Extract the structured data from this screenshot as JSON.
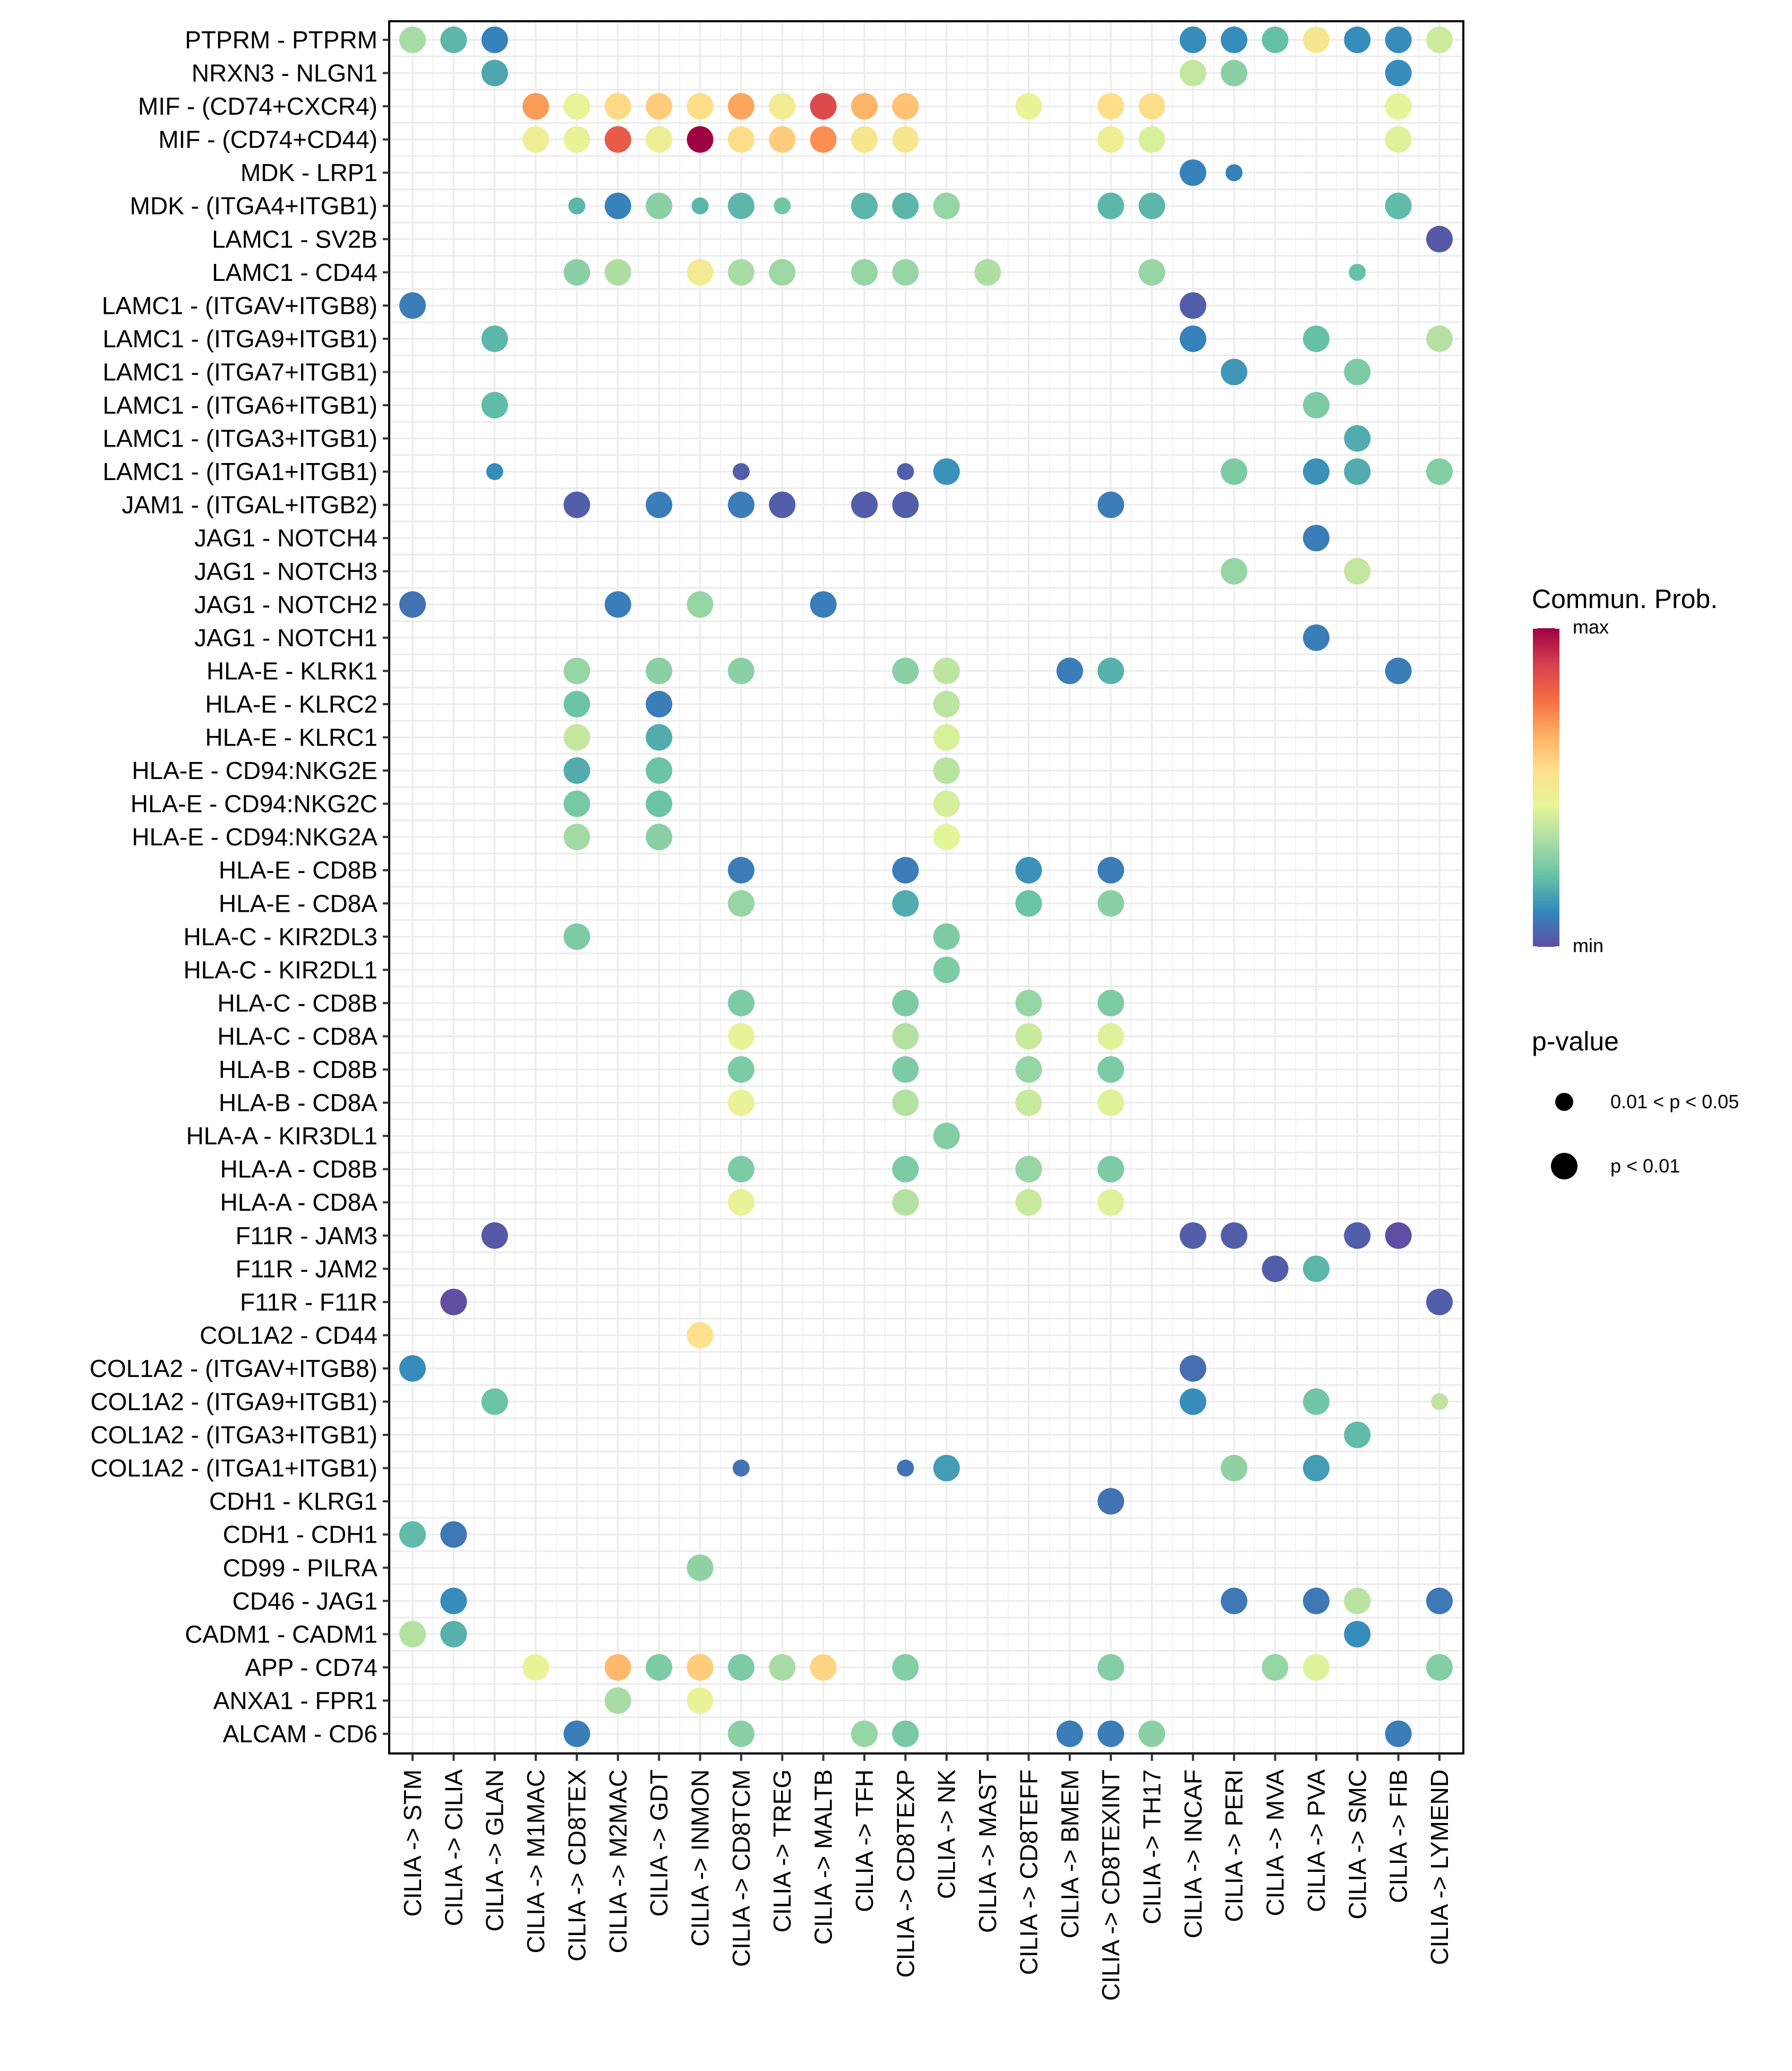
{
  "chart_data": {
    "type": "scatter",
    "subtype": "bubble-dotplot",
    "title": "",
    "xlabel": "",
    "ylabel": "",
    "grid": true,
    "x_categories": [
      "CILIA -> STM",
      "CILIA -> CILIA",
      "CILIA -> GLAN",
      "CILIA -> M1MAC",
      "CILIA -> CD8TEX",
      "CILIA -> M2MAC",
      "CILIA -> GDT",
      "CILIA -> INMON",
      "CILIA -> CD8TCM",
      "CILIA -> TREG",
      "CILIA -> MALTB",
      "CILIA -> TFH",
      "CILIA -> CD8TEXP",
      "CILIA -> NK",
      "CILIA -> MAST",
      "CILIA -> CD8TEFF",
      "CILIA -> BMEM",
      "CILIA -> CD8TEXINT",
      "CILIA -> TH17",
      "CILIA -> INCAF",
      "CILIA -> PERI",
      "CILIA -> MVA",
      "CILIA -> PVA",
      "CILIA -> SMC",
      "CILIA -> FIB",
      "CILIA -> LYMEND"
    ],
    "y_categories_top_to_bottom": [
      "PTPRM - PTPRM",
      "NRXN3 - NLGN1",
      "MIF - (CD74+CXCR4)",
      "MIF - (CD74+CD44)",
      "MDK - LRP1",
      "MDK - (ITGA4+ITGB1)",
      "LAMC1 - SV2B",
      "LAMC1 - CD44",
      "LAMC1 - (ITGAV+ITGB8)",
      "LAMC1 - (ITGA9+ITGB1)",
      "LAMC1 - (ITGA7+ITGB1)",
      "LAMC1 - (ITGA6+ITGB1)",
      "LAMC1 - (ITGA3+ITGB1)",
      "LAMC1 - (ITGA1+ITGB1)",
      "JAM1 - (ITGAL+ITGB2)",
      "JAG1 - NOTCH4",
      "JAG1 - NOTCH3",
      "JAG1 - NOTCH2",
      "JAG1 - NOTCH1",
      "HLA-E - KLRK1",
      "HLA-E - KLRC2",
      "HLA-E - KLRC1",
      "HLA-E - CD94:NKG2E",
      "HLA-E - CD94:NKG2C",
      "HLA-E - CD94:NKG2A",
      "HLA-E - CD8B",
      "HLA-E - CD8A",
      "HLA-C - KIR2DL3",
      "HLA-C - KIR2DL1",
      "HLA-C - CD8B",
      "HLA-C - CD8A",
      "HLA-B - CD8B",
      "HLA-B - CD8A",
      "HLA-A - KIR3DL1",
      "HLA-A - CD8B",
      "HLA-A - CD8A",
      "F11R - JAM3",
      "F11R - JAM2",
      "F11R - F11R",
      "COL1A2 - CD44",
      "COL1A2 - (ITGAV+ITGB8)",
      "COL1A2 - (ITGA9+ITGB1)",
      "COL1A2 - (ITGA3+ITGB1)",
      "COL1A2 - (ITGA1+ITGB1)",
      "CDH1 - KLRG1",
      "CDH1 - CDH1",
      "CD99 - PILRA",
      "CD46 - JAG1",
      "CADM1 - CADM1",
      "APP - CD74",
      "ANXA1 - FPR1",
      "ALCAM - CD6"
    ],
    "point_fields": [
      "row_index",
      "col_index",
      "commun_prob_scaled_0_to_1",
      "p_lt_0.01 (1) or 0.01<p<0.05 (0)"
    ],
    "points": [
      [
        0,
        0,
        0.33,
        1
      ],
      [
        0,
        1,
        0.2,
        1
      ],
      [
        0,
        2,
        0.1,
        1
      ],
      [
        0,
        19,
        0.12,
        1
      ],
      [
        0,
        20,
        0.12,
        1
      ],
      [
        0,
        21,
        0.22,
        1
      ],
      [
        0,
        22,
        0.52,
        1
      ],
      [
        0,
        23,
        0.12,
        1
      ],
      [
        0,
        24,
        0.12,
        1
      ],
      [
        0,
        25,
        0.4,
        1
      ],
      [
        1,
        2,
        0.17,
        1
      ],
      [
        1,
        19,
        0.38,
        1
      ],
      [
        1,
        20,
        0.28,
        1
      ],
      [
        1,
        24,
        0.12,
        1
      ],
      [
        2,
        3,
        0.7,
        1
      ],
      [
        2,
        4,
        0.45,
        1
      ],
      [
        2,
        5,
        0.57,
        1
      ],
      [
        2,
        6,
        0.6,
        1
      ],
      [
        2,
        7,
        0.56,
        1
      ],
      [
        2,
        8,
        0.68,
        1
      ],
      [
        2,
        9,
        0.5,
        1
      ],
      [
        2,
        10,
        0.86,
        1
      ],
      [
        2,
        11,
        0.65,
        1
      ],
      [
        2,
        12,
        0.62,
        1
      ],
      [
        2,
        15,
        0.46,
        1
      ],
      [
        2,
        17,
        0.56,
        1
      ],
      [
        2,
        18,
        0.56,
        1
      ],
      [
        2,
        24,
        0.44,
        1
      ],
      [
        3,
        3,
        0.48,
        1
      ],
      [
        3,
        4,
        0.46,
        1
      ],
      [
        3,
        5,
        0.82,
        1
      ],
      [
        3,
        6,
        0.48,
        1
      ],
      [
        3,
        7,
        1.0,
        1
      ],
      [
        3,
        8,
        0.56,
        1
      ],
      [
        3,
        9,
        0.6,
        1
      ],
      [
        3,
        10,
        0.72,
        1
      ],
      [
        3,
        11,
        0.52,
        1
      ],
      [
        3,
        12,
        0.52,
        1
      ],
      [
        3,
        17,
        0.48,
        1
      ],
      [
        3,
        18,
        0.42,
        1
      ],
      [
        3,
        24,
        0.43,
        1
      ],
      [
        4,
        19,
        0.1,
        1
      ],
      [
        4,
        20,
        0.1,
        0
      ],
      [
        5,
        4,
        0.2,
        0
      ],
      [
        5,
        5,
        0.1,
        1
      ],
      [
        5,
        6,
        0.28,
        1
      ],
      [
        5,
        7,
        0.2,
        0
      ],
      [
        5,
        8,
        0.2,
        1
      ],
      [
        5,
        9,
        0.24,
        0
      ],
      [
        5,
        11,
        0.2,
        1
      ],
      [
        5,
        12,
        0.2,
        1
      ],
      [
        5,
        13,
        0.3,
        1
      ],
      [
        5,
        17,
        0.2,
        1
      ],
      [
        5,
        18,
        0.2,
        1
      ],
      [
        5,
        24,
        0.21,
        1
      ],
      [
        6,
        25,
        0.02,
        1
      ],
      [
        7,
        4,
        0.28,
        1
      ],
      [
        7,
        5,
        0.34,
        1
      ],
      [
        7,
        7,
        0.5,
        1
      ],
      [
        7,
        8,
        0.33,
        1
      ],
      [
        7,
        9,
        0.31,
        1
      ],
      [
        7,
        11,
        0.3,
        1
      ],
      [
        7,
        12,
        0.3,
        1
      ],
      [
        7,
        14,
        0.34,
        1
      ],
      [
        7,
        18,
        0.3,
        1
      ],
      [
        7,
        23,
        0.22,
        0
      ],
      [
        8,
        0,
        0.09,
        1
      ],
      [
        8,
        19,
        0.03,
        1
      ],
      [
        9,
        2,
        0.2,
        1
      ],
      [
        9,
        19,
        0.1,
        1
      ],
      [
        9,
        22,
        0.22,
        1
      ],
      [
        9,
        25,
        0.35,
        1
      ],
      [
        10,
        20,
        0.14,
        1
      ],
      [
        10,
        23,
        0.26,
        1
      ],
      [
        11,
        2,
        0.21,
        1
      ],
      [
        11,
        22,
        0.26,
        1
      ],
      [
        12,
        23,
        0.18,
        1
      ],
      [
        13,
        2,
        0.12,
        0
      ],
      [
        13,
        8,
        0.03,
        0
      ],
      [
        13,
        12,
        0.03,
        0
      ],
      [
        13,
        13,
        0.13,
        1
      ],
      [
        13,
        20,
        0.26,
        1
      ],
      [
        13,
        22,
        0.13,
        1
      ],
      [
        13,
        23,
        0.18,
        1
      ],
      [
        13,
        25,
        0.27,
        1
      ],
      [
        14,
        4,
        0.03,
        1
      ],
      [
        14,
        6,
        0.09,
        1
      ],
      [
        14,
        8,
        0.09,
        1
      ],
      [
        14,
        9,
        0.03,
        1
      ],
      [
        14,
        11,
        0.03,
        1
      ],
      [
        14,
        12,
        0.03,
        1
      ],
      [
        14,
        17,
        0.09,
        1
      ],
      [
        15,
        22,
        0.09,
        1
      ],
      [
        16,
        20,
        0.3,
        1
      ],
      [
        16,
        23,
        0.38,
        1
      ],
      [
        17,
        0,
        0.07,
        1
      ],
      [
        17,
        5,
        0.09,
        1
      ],
      [
        17,
        7,
        0.3,
        1
      ],
      [
        17,
        10,
        0.09,
        1
      ],
      [
        18,
        22,
        0.09,
        1
      ],
      [
        19,
        4,
        0.3,
        1
      ],
      [
        19,
        6,
        0.28,
        1
      ],
      [
        19,
        8,
        0.28,
        1
      ],
      [
        19,
        12,
        0.28,
        1
      ],
      [
        19,
        13,
        0.37,
        1
      ],
      [
        19,
        16,
        0.09,
        1
      ],
      [
        19,
        17,
        0.19,
        1
      ],
      [
        19,
        24,
        0.09,
        1
      ],
      [
        20,
        4,
        0.23,
        1
      ],
      [
        20,
        6,
        0.09,
        1
      ],
      [
        20,
        13,
        0.37,
        1
      ],
      [
        21,
        4,
        0.38,
        1
      ],
      [
        21,
        6,
        0.18,
        1
      ],
      [
        21,
        13,
        0.42,
        1
      ],
      [
        22,
        4,
        0.18,
        1
      ],
      [
        22,
        6,
        0.23,
        1
      ],
      [
        22,
        13,
        0.36,
        1
      ],
      [
        23,
        4,
        0.25,
        1
      ],
      [
        23,
        6,
        0.23,
        1
      ],
      [
        23,
        13,
        0.41,
        1
      ],
      [
        24,
        4,
        0.32,
        1
      ],
      [
        24,
        6,
        0.28,
        1
      ],
      [
        24,
        13,
        0.44,
        1
      ],
      [
        25,
        8,
        0.09,
        1
      ],
      [
        25,
        12,
        0.09,
        1
      ],
      [
        25,
        15,
        0.13,
        1
      ],
      [
        25,
        17,
        0.09,
        1
      ],
      [
        26,
        8,
        0.3,
        1
      ],
      [
        26,
        12,
        0.18,
        1
      ],
      [
        26,
        15,
        0.23,
        1
      ],
      [
        26,
        17,
        0.28,
        1
      ],
      [
        27,
        4,
        0.26,
        1
      ],
      [
        27,
        13,
        0.26,
        1
      ],
      [
        28,
        13,
        0.26,
        1
      ],
      [
        29,
        8,
        0.26,
        1
      ],
      [
        29,
        12,
        0.26,
        1
      ],
      [
        29,
        15,
        0.3,
        1
      ],
      [
        29,
        17,
        0.26,
        1
      ],
      [
        30,
        8,
        0.46,
        1
      ],
      [
        30,
        12,
        0.35,
        1
      ],
      [
        30,
        15,
        0.39,
        1
      ],
      [
        30,
        17,
        0.43,
        1
      ],
      [
        31,
        8,
        0.26,
        1
      ],
      [
        31,
        12,
        0.26,
        1
      ],
      [
        31,
        15,
        0.3,
        1
      ],
      [
        31,
        17,
        0.26,
        1
      ],
      [
        32,
        8,
        0.46,
        1
      ],
      [
        32,
        12,
        0.35,
        1
      ],
      [
        32,
        15,
        0.39,
        1
      ],
      [
        32,
        17,
        0.43,
        1
      ],
      [
        33,
        13,
        0.27,
        1
      ],
      [
        34,
        8,
        0.26,
        1
      ],
      [
        34,
        12,
        0.26,
        1
      ],
      [
        34,
        15,
        0.3,
        1
      ],
      [
        34,
        17,
        0.26,
        1
      ],
      [
        35,
        8,
        0.46,
        1
      ],
      [
        35,
        12,
        0.35,
        1
      ],
      [
        35,
        15,
        0.39,
        1
      ],
      [
        35,
        17,
        0.43,
        1
      ],
      [
        36,
        2,
        0.02,
        1
      ],
      [
        36,
        19,
        0.03,
        1
      ],
      [
        36,
        20,
        0.03,
        1
      ],
      [
        36,
        23,
        0.03,
        1
      ],
      [
        36,
        24,
        0.0,
        1
      ],
      [
        37,
        21,
        0.03,
        1
      ],
      [
        37,
        22,
        0.2,
        1
      ],
      [
        38,
        1,
        0.0,
        1
      ],
      [
        38,
        25,
        0.03,
        1
      ],
      [
        39,
        7,
        0.55,
        1
      ],
      [
        40,
        0,
        0.12,
        1
      ],
      [
        40,
        19,
        0.06,
        1
      ],
      [
        41,
        2,
        0.23,
        1
      ],
      [
        41,
        19,
        0.12,
        1
      ],
      [
        41,
        22,
        0.24,
        1
      ],
      [
        41,
        25,
        0.37,
        0
      ],
      [
        42,
        23,
        0.21,
        1
      ],
      [
        43,
        8,
        0.07,
        0
      ],
      [
        43,
        12,
        0.07,
        0
      ],
      [
        43,
        13,
        0.15,
        1
      ],
      [
        43,
        20,
        0.29,
        1
      ],
      [
        43,
        22,
        0.15,
        1
      ],
      [
        44,
        17,
        0.07,
        1
      ],
      [
        45,
        0,
        0.21,
        1
      ],
      [
        45,
        1,
        0.08,
        1
      ],
      [
        46,
        7,
        0.29,
        1
      ],
      [
        47,
        1,
        0.12,
        1
      ],
      [
        47,
        20,
        0.08,
        1
      ],
      [
        47,
        22,
        0.08,
        1
      ],
      [
        47,
        23,
        0.36,
        1
      ],
      [
        47,
        25,
        0.08,
        1
      ],
      [
        48,
        0,
        0.35,
        1
      ],
      [
        48,
        1,
        0.19,
        1
      ],
      [
        48,
        23,
        0.12,
        1
      ],
      [
        49,
        3,
        0.46,
        1
      ],
      [
        49,
        5,
        0.64,
        1
      ],
      [
        49,
        6,
        0.26,
        1
      ],
      [
        49,
        7,
        0.6,
        1
      ],
      [
        49,
        8,
        0.26,
        1
      ],
      [
        49,
        9,
        0.33,
        1
      ],
      [
        49,
        10,
        0.58,
        1
      ],
      [
        49,
        12,
        0.27,
        1
      ],
      [
        49,
        17,
        0.27,
        1
      ],
      [
        49,
        21,
        0.3,
        1
      ],
      [
        49,
        22,
        0.43,
        1
      ],
      [
        49,
        25,
        0.27,
        1
      ],
      [
        50,
        5,
        0.33,
        1
      ],
      [
        50,
        7,
        0.46,
        1
      ],
      [
        51,
        4,
        0.09,
        1
      ],
      [
        51,
        8,
        0.28,
        1
      ],
      [
        51,
        11,
        0.3,
        1
      ],
      [
        51,
        12,
        0.25,
        1
      ],
      [
        51,
        16,
        0.09,
        1
      ],
      [
        51,
        17,
        0.09,
        1
      ],
      [
        51,
        18,
        0.28,
        1
      ],
      [
        51,
        24,
        0.09,
        1
      ]
    ],
    "color_scale": {
      "name": "Spectral (reversed)",
      "stops": [
        "#5E4FA2",
        "#3288BD",
        "#66C2A5",
        "#ABDDA4",
        "#E6F598",
        "#FEE08B",
        "#FDAE61",
        "#F46D43",
        "#D53E4F",
        "#9E0142"
      ]
    },
    "legend": {
      "color_title": "Commun. Prob.",
      "color_max_label": "max",
      "color_min_label": "min",
      "size_title": "p-value",
      "size_items": [
        {
          "label": "0.01 < p < 0.05",
          "sig": 0
        },
        {
          "label": "p < 0.01",
          "sig": 1
        }
      ],
      "placement": "right"
    }
  }
}
